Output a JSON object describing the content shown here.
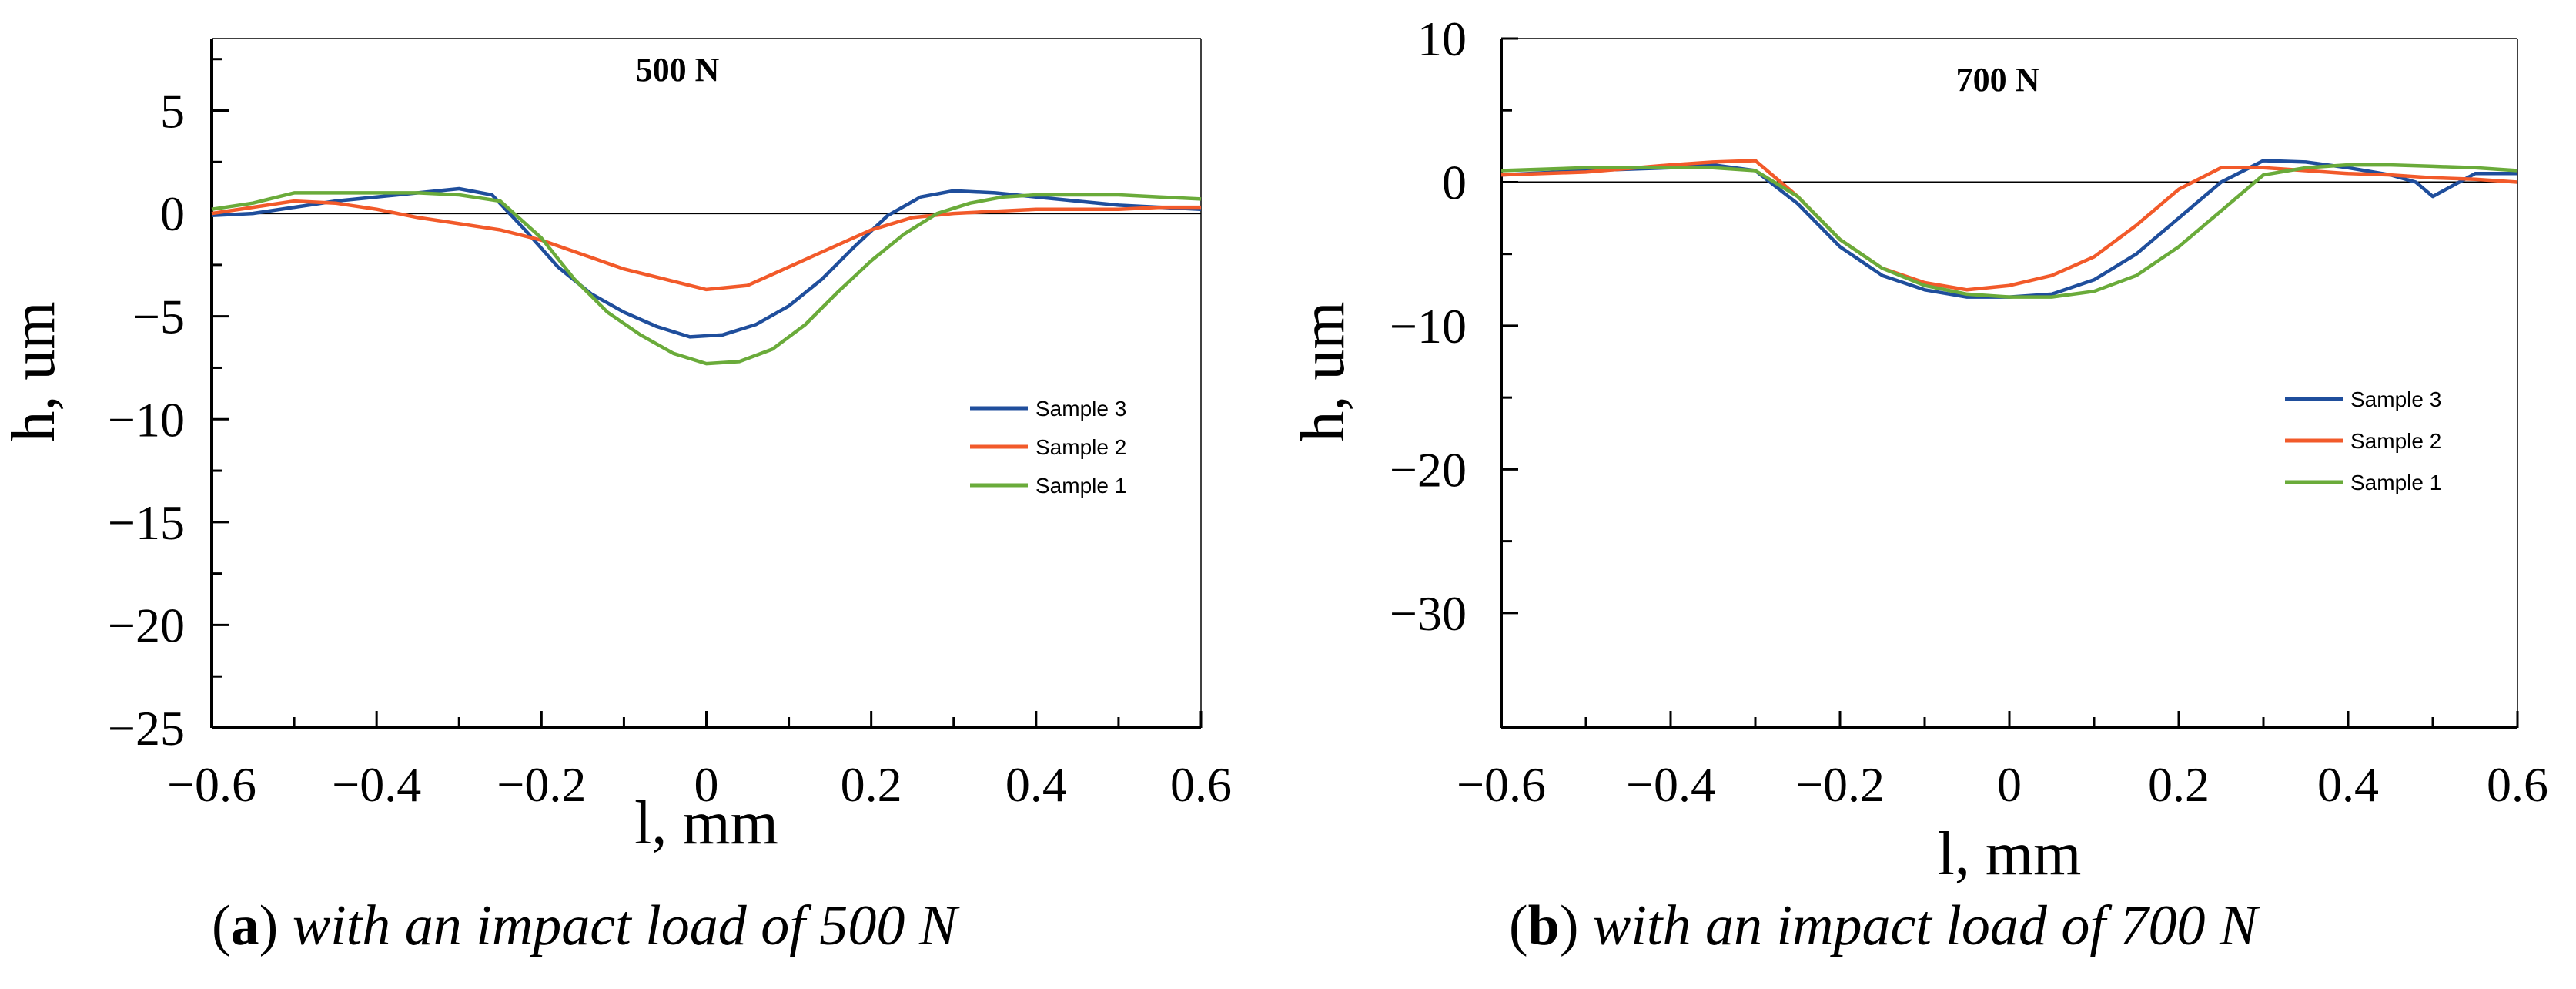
{
  "chart_data": [
    {
      "type": "line",
      "title": "500 N",
      "xlabel": "l, mm",
      "ylabel": "h, um",
      "xlim": [
        -0.6,
        0.6
      ],
      "ylim": [
        -25,
        8.5
      ],
      "xticks": [
        -0.6,
        -0.4,
        -0.2,
        0,
        0.2,
        0.4,
        0.6
      ],
      "xtick_labels": [
        "−0.6",
        "−0.4",
        "−0.2",
        "0",
        "0.2",
        "0.4",
        "0.6"
      ],
      "yticks": [
        5,
        0,
        -5,
        -10,
        -15,
        -20,
        -25
      ],
      "ytick_labels": [
        "5",
        "0",
        "−5",
        "−10",
        "−15",
        "−20",
        "−25"
      ],
      "grid": false,
      "legend": "right",
      "series": [
        {
          "name": "Sample 3",
          "color": "#1f4e9c",
          "x": [
            -0.6,
            -0.55,
            -0.5,
            -0.45,
            -0.4,
            -0.35,
            -0.3,
            -0.26,
            -0.22,
            -0.18,
            -0.14,
            -0.1,
            -0.06,
            -0.02,
            0.02,
            0.06,
            0.1,
            0.14,
            0.18,
            0.22,
            0.26,
            0.3,
            0.35,
            0.4,
            0.45,
            0.5,
            0.55,
            0.6
          ],
          "values": [
            -0.1,
            0.0,
            0.3,
            0.6,
            0.8,
            1.0,
            1.2,
            0.9,
            -0.8,
            -2.6,
            -3.9,
            -4.8,
            -5.5,
            -6.0,
            -5.9,
            -5.4,
            -4.5,
            -3.2,
            -1.6,
            -0.1,
            0.8,
            1.1,
            1.0,
            0.8,
            0.6,
            0.4,
            0.3,
            0.2
          ]
        },
        {
          "name": "Sample 2",
          "color": "#f25a2a",
          "x": [
            -0.6,
            -0.55,
            -0.5,
            -0.45,
            -0.4,
            -0.35,
            -0.3,
            -0.25,
            -0.2,
            -0.15,
            -0.1,
            -0.05,
            0.0,
            0.05,
            0.1,
            0.15,
            0.2,
            0.25,
            0.3,
            0.35,
            0.4,
            0.45,
            0.5,
            0.55,
            0.6
          ],
          "values": [
            0.0,
            0.3,
            0.6,
            0.5,
            0.2,
            -0.2,
            -0.5,
            -0.8,
            -1.3,
            -2.0,
            -2.7,
            -3.2,
            -3.7,
            -3.5,
            -2.6,
            -1.7,
            -0.8,
            -0.2,
            0.0,
            0.1,
            0.2,
            0.2,
            0.2,
            0.3,
            0.3
          ]
        },
        {
          "name": "Sample 1",
          "color": "#6aab3a",
          "x": [
            -0.6,
            -0.55,
            -0.5,
            -0.45,
            -0.4,
            -0.35,
            -0.3,
            -0.25,
            -0.2,
            -0.16,
            -0.12,
            -0.08,
            -0.04,
            0.0,
            0.04,
            0.08,
            0.12,
            0.16,
            0.2,
            0.24,
            0.28,
            0.32,
            0.36,
            0.4,
            0.45,
            0.5,
            0.55,
            0.6
          ],
          "values": [
            0.2,
            0.5,
            1.0,
            1.0,
            1.0,
            1.0,
            0.9,
            0.6,
            -1.2,
            -3.2,
            -4.8,
            -5.9,
            -6.8,
            -7.3,
            -7.2,
            -6.6,
            -5.4,
            -3.8,
            -2.3,
            -1.0,
            0.0,
            0.5,
            0.8,
            0.9,
            0.9,
            0.9,
            0.8,
            0.7
          ]
        }
      ]
    },
    {
      "type": "line",
      "title": "700 N",
      "xlabel": "l, mm",
      "ylabel": "h, um",
      "xlim": [
        -0.6,
        0.6
      ],
      "ylim": [
        -38,
        10
      ],
      "xticks": [
        -0.6,
        -0.4,
        -0.2,
        0,
        0.2,
        0.4,
        0.6
      ],
      "xtick_labels": [
        "−0.6",
        "−0.4",
        "−0.2",
        "0",
        "0.2",
        "0.4",
        "0.6"
      ],
      "yticks": [
        10,
        0,
        -10,
        -20,
        -30
      ],
      "ytick_labels": [
        "10",
        "0",
        "−10",
        "−20",
        "−30"
      ],
      "grid": false,
      "legend": "right",
      "series": [
        {
          "name": "Sample 3",
          "color": "#1f4e9c",
          "x": [
            -0.6,
            -0.5,
            -0.4,
            -0.35,
            -0.3,
            -0.25,
            -0.2,
            -0.15,
            -0.1,
            -0.05,
            0.0,
            0.05,
            0.1,
            0.15,
            0.2,
            0.25,
            0.3,
            0.35,
            0.4,
            0.45,
            0.48,
            0.5,
            0.55,
            0.6
          ],
          "values": [
            0.5,
            0.8,
            1.0,
            1.2,
            0.8,
            -1.5,
            -4.5,
            -6.5,
            -7.5,
            -8.0,
            -8.0,
            -7.8,
            -6.8,
            -5.0,
            -2.5,
            0.0,
            1.5,
            1.4,
            1.0,
            0.5,
            0.0,
            -1.0,
            0.6,
            0.6
          ]
        },
        {
          "name": "Sample 2",
          "color": "#f25a2a",
          "x": [
            -0.6,
            -0.5,
            -0.4,
            -0.35,
            -0.3,
            -0.25,
            -0.2,
            -0.15,
            -0.1,
            -0.05,
            0.0,
            0.05,
            0.1,
            0.15,
            0.2,
            0.25,
            0.3,
            0.35,
            0.4,
            0.45,
            0.5,
            0.55,
            0.6
          ],
          "values": [
            0.5,
            0.7,
            1.2,
            1.4,
            1.5,
            -1.0,
            -4.0,
            -6.0,
            -7.0,
            -7.5,
            -7.2,
            -6.5,
            -5.2,
            -3.0,
            -0.5,
            1.0,
            1.0,
            0.8,
            0.6,
            0.5,
            0.3,
            0.2,
            0.0
          ]
        },
        {
          "name": "Sample 1",
          "color": "#6aab3a",
          "x": [
            -0.6,
            -0.5,
            -0.4,
            -0.35,
            -0.3,
            -0.25,
            -0.2,
            -0.15,
            -0.1,
            -0.05,
            0.0,
            0.05,
            0.1,
            0.15,
            0.2,
            0.25,
            0.3,
            0.35,
            0.4,
            0.45,
            0.5,
            0.55,
            0.6
          ],
          "values": [
            0.8,
            1.0,
            1.0,
            1.0,
            0.8,
            -1.0,
            -4.0,
            -6.0,
            -7.2,
            -7.8,
            -8.0,
            -8.0,
            -7.6,
            -6.5,
            -4.5,
            -2.0,
            0.5,
            1.0,
            1.2,
            1.2,
            1.1,
            1.0,
            0.8
          ]
        }
      ]
    }
  ],
  "captions": [
    {
      "tag": "a",
      "text": "with an impact load of 500 N"
    },
    {
      "tag": "b",
      "text": "with an impact load of 700 N"
    }
  ]
}
